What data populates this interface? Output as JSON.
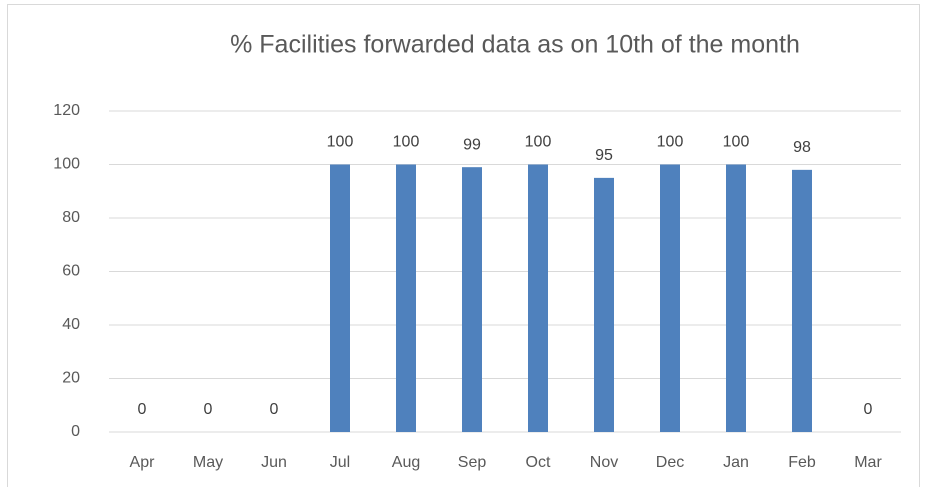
{
  "chart_data": {
    "type": "bar",
    "title": "% Facilities forwarded data as on 10th of the month",
    "categories": [
      "Apr",
      "May",
      "Jun",
      "Jul",
      "Aug",
      "Sep",
      "Oct",
      "Nov",
      "Dec",
      "Jan",
      "Feb",
      "Mar"
    ],
    "values": [
      0,
      0,
      0,
      100,
      100,
      99,
      100,
      95,
      100,
      100,
      98,
      0
    ],
    "color": "#4f81bd",
    "data_labels": true,
    "ylim": [
      0,
      120
    ],
    "yticks": [
      0,
      20,
      40,
      60,
      80,
      100,
      120
    ],
    "grid": true
  }
}
